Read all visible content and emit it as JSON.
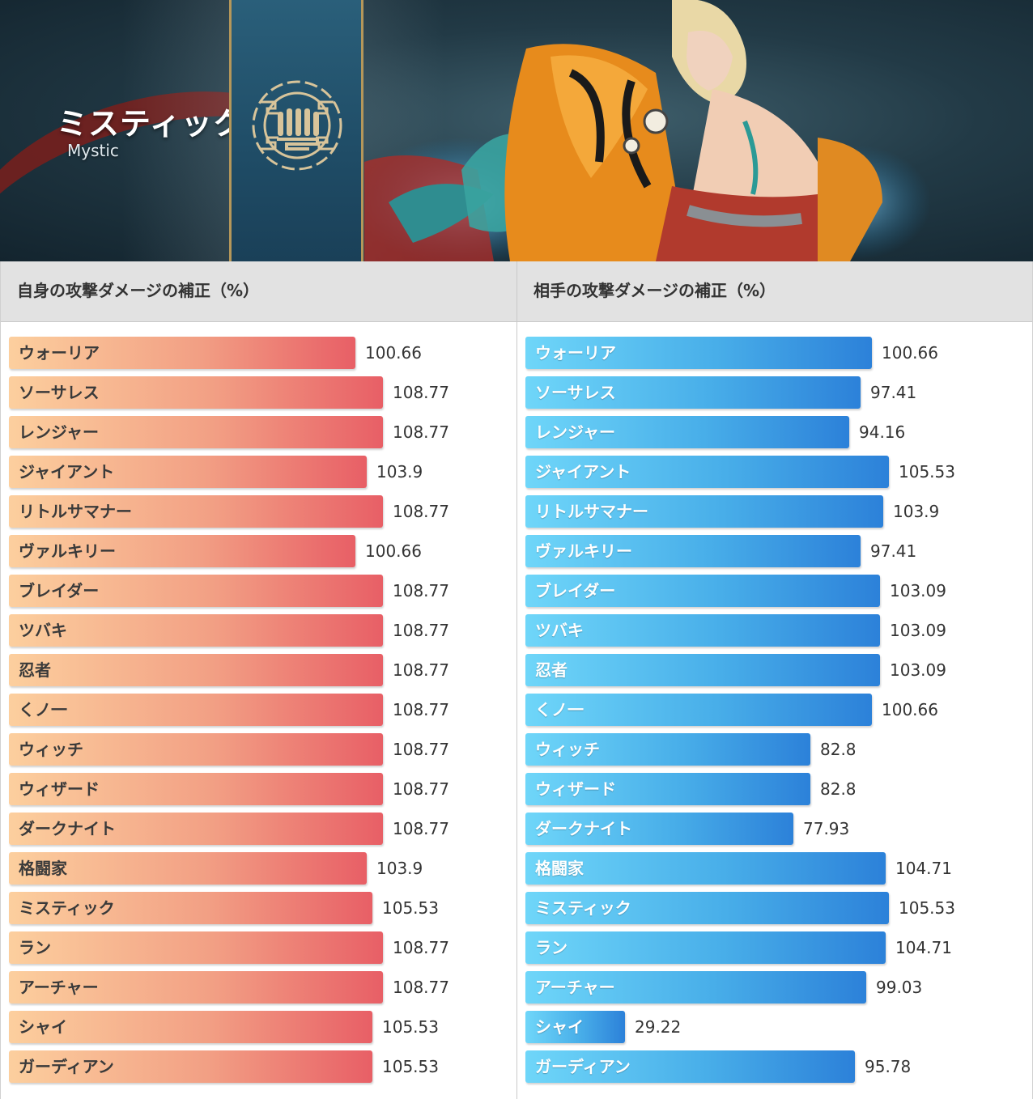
{
  "banner": {
    "title": "ミスティック",
    "subtitle": "Mystic"
  },
  "headers": {
    "self": "自身の攻撃ダメージの補正（%）",
    "opponent": "相手の攻撃ダメージの補正（%）"
  },
  "colors": {
    "self_bar_start": "#fccf9e",
    "self_bar_end": "#e85f66",
    "opponent_bar_start": "#6fd6f9",
    "opponent_bar_end": "#2c81d9",
    "header_bg": "#e2e2e2"
  },
  "icons": {
    "emblem": "mystic-class-emblem-icon"
  },
  "chart_data": [
    {
      "type": "bar",
      "orientation": "horizontal",
      "title": "自身の攻撃ダメージの補正（%）",
      "categories": [
        "ウォーリア",
        "ソーサレス",
        "レンジャー",
        "ジャイアント",
        "リトルサマナー",
        "ヴァルキリー",
        "ブレイダー",
        "ツバキ",
        "忍者",
        "くノ一",
        "ウィッチ",
        "ウィザード",
        "ダークナイト",
        "格闘家",
        "ミスティック",
        "ラン",
        "アーチャー",
        "シャイ",
        "ガーディアン"
      ],
      "values": [
        100.66,
        108.77,
        108.77,
        103.9,
        108.77,
        100.66,
        108.77,
        108.77,
        108.77,
        108.77,
        108.77,
        108.77,
        108.77,
        103.9,
        105.53,
        108.77,
        108.77,
        105.53,
        105.53
      ],
      "value_labels": [
        "100.66",
        "108.77",
        "108.77",
        "103.9",
        "108.77",
        "100.66",
        "108.77",
        "108.77",
        "108.77",
        "108.77",
        "108.77",
        "108.77",
        "108.77",
        "103.9",
        "105.53",
        "108.77",
        "108.77",
        "105.53",
        "105.53"
      ],
      "xlim": [
        0,
        108.77
      ],
      "grid": false
    },
    {
      "type": "bar",
      "orientation": "horizontal",
      "title": "相手の攻撃ダメージの補正（%）",
      "categories": [
        "ウォーリア",
        "ソーサレス",
        "レンジャー",
        "ジャイアント",
        "リトルサマナー",
        "ヴァルキリー",
        "ブレイダー",
        "ツバキ",
        "忍者",
        "くノ一",
        "ウィッチ",
        "ウィザード",
        "ダークナイト",
        "格闘家",
        "ミスティック",
        "ラン",
        "アーチャー",
        "シャイ",
        "ガーディアン"
      ],
      "values": [
        100.66,
        97.41,
        94.16,
        105.53,
        103.9,
        97.41,
        103.09,
        103.09,
        103.09,
        100.66,
        82.8,
        82.8,
        77.93,
        104.71,
        105.53,
        104.71,
        99.03,
        29.22,
        95.78
      ],
      "value_labels": [
        "100.66",
        "97.41",
        "94.16",
        "105.53",
        "103.9",
        "97.41",
        "103.09",
        "103.09",
        "103.09",
        "100.66",
        "82.8",
        "82.8",
        "77.93",
        "104.71",
        "105.53",
        "104.71",
        "99.03",
        "29.22",
        "95.78"
      ],
      "xlim": [
        0,
        105.53
      ],
      "grid": false
    }
  ]
}
